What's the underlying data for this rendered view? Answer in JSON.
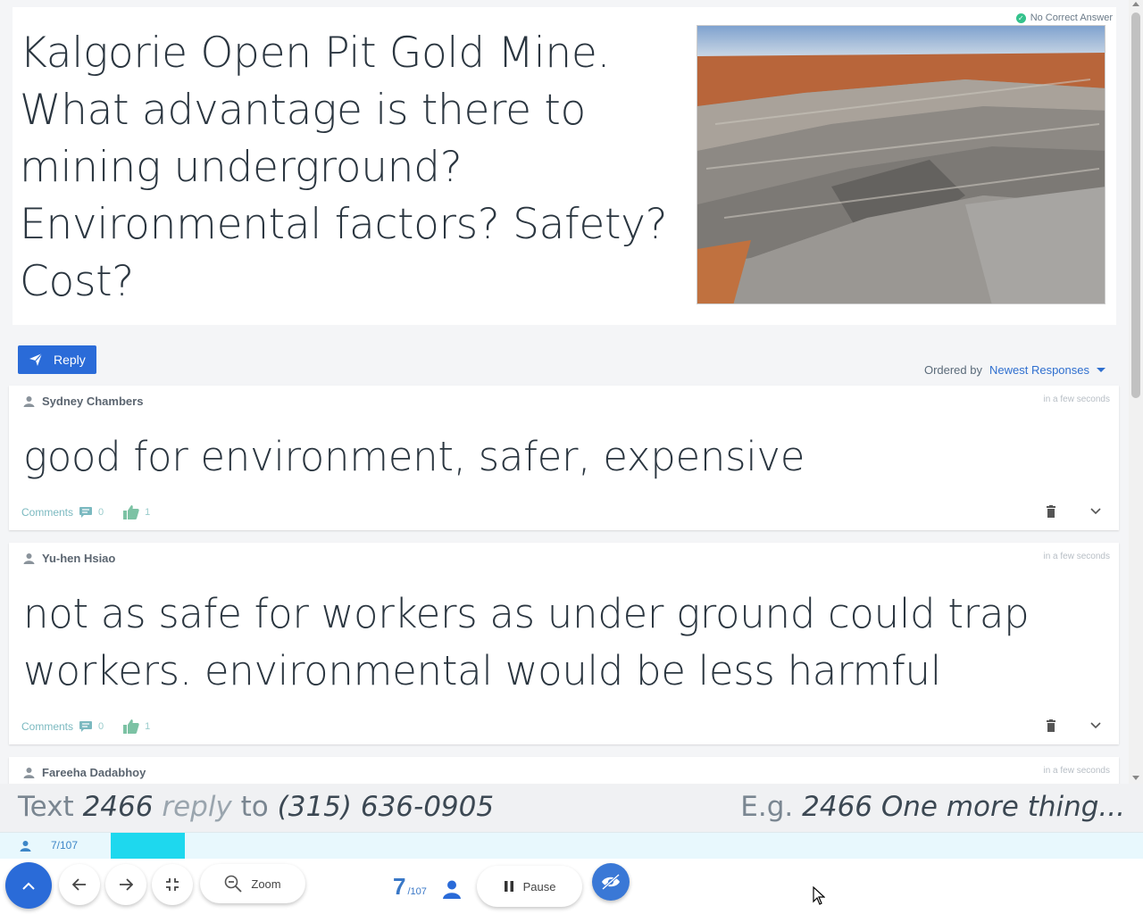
{
  "question": {
    "text": "Kalgorie Open Pit Gold Mine.  What advantage is there to mining underground?  Environmental factors? Safety? Cost?",
    "badge": "No Correct Answer",
    "image_icon": "open-pit-mine-photo"
  },
  "reply_button": {
    "label": "Reply",
    "icon": "send-icon"
  },
  "ordering": {
    "label": "Ordered by",
    "selected": "Newest Responses"
  },
  "responses": [
    {
      "author": "Sydney Chambers",
      "time": "in a few seconds",
      "text": "good for environment, safer, expensive",
      "comments_label": "Comments",
      "comments_count": "0",
      "likes": "1"
    },
    {
      "author": "Yu-hen Hsiao",
      "time": "in a few seconds",
      "text": "not as safe for workers as under ground could trap workers. environmental would be less harmful",
      "comments_label": "Comments",
      "comments_count": "0",
      "likes": "1"
    },
    {
      "author": "Fareeha Dadabhoy",
      "time": "in a few seconds"
    }
  ],
  "sms": {
    "prefix": "Text",
    "code": "2466",
    "reply_word": "reply",
    "to": "to",
    "number": "(315) 636-0905",
    "example_prefix": "E.g.",
    "example": "2466 One more thing..."
  },
  "progress": {
    "count": "7/107",
    "fraction": 0.065
  },
  "toolbar": {
    "zoom_label": "Zoom",
    "count_num": "7",
    "count_den": "/107",
    "pause_label": "Pause"
  },
  "colors": {
    "accent": "#2a6bd8",
    "progress": "#1ed8ee",
    "badge_check": "#34c28c"
  }
}
